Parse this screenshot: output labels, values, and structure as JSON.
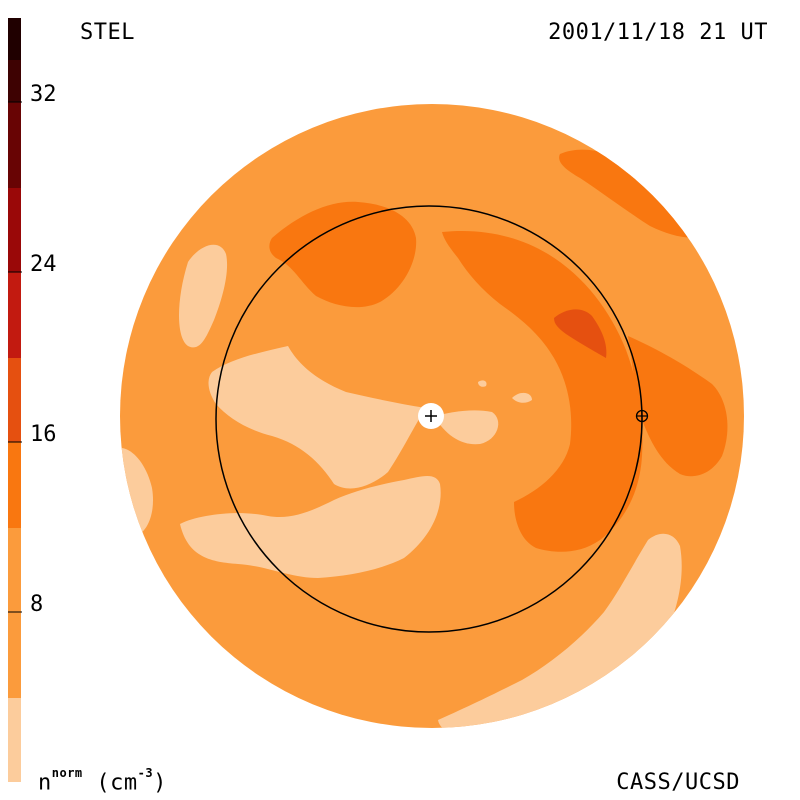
{
  "header": {
    "left_text": "STEL",
    "right_text": "2001/11/18 21 UT"
  },
  "footer": {
    "right_text": "CASS/UCSD",
    "units": {
      "variable": "n",
      "superscript": "norm",
      "unit": "(cm",
      "unit_exp": "-3",
      "close": ")"
    }
  },
  "colorbar": {
    "tick_labels": [
      "8",
      "16",
      "24",
      "32"
    ],
    "color_bands": [
      "#fccc9c",
      "#fb9b3c",
      "#f97710",
      "#e55010",
      "#c21a10",
      "#9a0808",
      "#680404",
      "#3e0202",
      "#200000"
    ]
  },
  "map": {
    "colors": {
      "background": "#fb9b3c",
      "low": "#fccc9c",
      "mid": "#f97710",
      "high": "#e55010"
    },
    "markers": {
      "sun_symbol": "+",
      "earth_symbol": "⊕"
    }
  }
}
